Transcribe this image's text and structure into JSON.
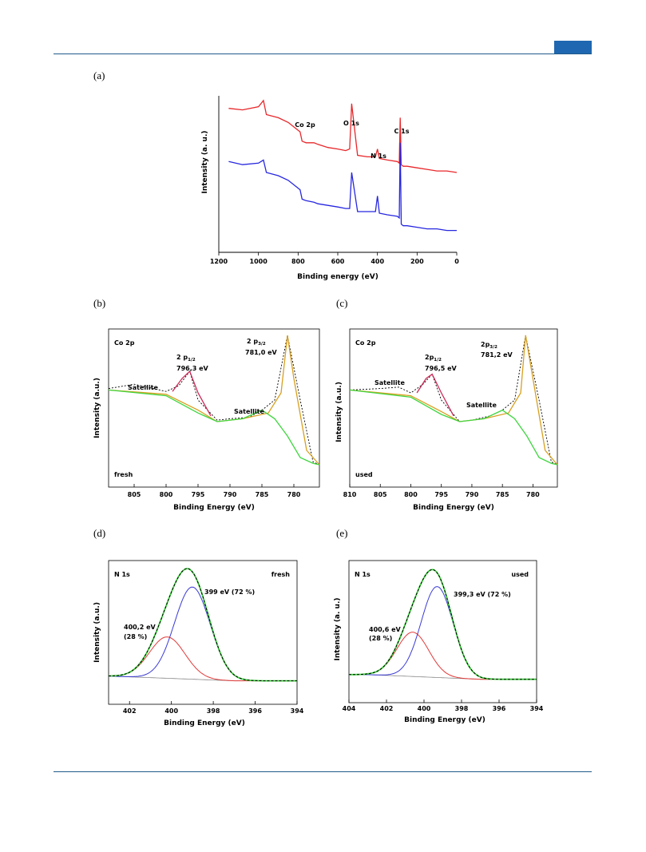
{
  "panels": {
    "a": "(a)",
    "b": "(b)",
    "c": "(c)",
    "d": "(d)",
    "e": "(e)"
  },
  "chart_data": [
    {
      "id": "a",
      "type": "line",
      "xlabel": "Binding energy (eV)",
      "ylabel": "Intensity (a. u.)",
      "xlim": [
        1200,
        0
      ],
      "xticks": [
        "1200",
        "1000",
        "800",
        "600",
        "400",
        "200",
        "0"
      ],
      "annotations": [
        "Co 2p",
        "O 1s",
        "N 1s",
        "C 1s"
      ],
      "series": [
        {
          "color": "#e8272a",
          "x": [
            1150,
            1080,
            1000,
            975,
            960,
            900,
            850,
            790,
            780,
            760,
            720,
            700,
            650,
            600,
            560,
            540,
            530,
            500,
            450,
            410,
            400,
            390,
            350,
            300,
            290,
            285,
            280,
            270,
            250,
            200,
            150,
            100,
            50,
            0
          ],
          "y": [
            0.92,
            0.91,
            0.93,
            0.97,
            0.88,
            0.86,
            0.83,
            0.77,
            0.71,
            0.7,
            0.7,
            0.69,
            0.67,
            0.66,
            0.65,
            0.66,
            0.95,
            0.62,
            0.61,
            0.61,
            0.66,
            0.6,
            0.59,
            0.58,
            0.57,
            0.86,
            0.56,
            0.55,
            0.55,
            0.54,
            0.53,
            0.52,
            0.52,
            0.51
          ]
        },
        {
          "color": "#2727e0",
          "x": [
            1150,
            1080,
            1000,
            975,
            960,
            900,
            850,
            790,
            780,
            760,
            720,
            700,
            650,
            600,
            560,
            540,
            530,
            500,
            450,
            410,
            400,
            390,
            350,
            300,
            290,
            285,
            280,
            270,
            250,
            200,
            150,
            100,
            50,
            0
          ],
          "y": [
            0.58,
            0.56,
            0.57,
            0.59,
            0.51,
            0.49,
            0.46,
            0.4,
            0.34,
            0.33,
            0.32,
            0.31,
            0.3,
            0.29,
            0.28,
            0.28,
            0.51,
            0.26,
            0.26,
            0.26,
            0.36,
            0.25,
            0.24,
            0.23,
            0.22,
            0.7,
            0.18,
            0.17,
            0.17,
            0.16,
            0.15,
            0.15,
            0.14,
            0.14
          ]
        }
      ]
    },
    {
      "id": "b",
      "type": "line",
      "xlabel": "Binding Energy (eV)",
      "ylabel": "Intensity (a.u.)",
      "xlim": [
        809,
        776
      ],
      "xticks": [
        "805",
        "800",
        "795",
        "790",
        "785",
        "780"
      ],
      "annotations": [
        "Co 2p",
        "2 p",
        "1/2",
        "796,3 eV",
        "2 p",
        "3/2",
        "781,0 eV",
        "Satellite",
        "Satellite",
        "fresh"
      ],
      "series": [
        {
          "color": "#000000",
          "x": [
            809,
            805,
            802,
            800,
            798,
            796.3,
            795,
            792,
            790,
            787,
            785,
            783,
            781,
            779,
            777,
            776
          ],
          "y": [
            0.63,
            0.66,
            0.63,
            0.61,
            0.65,
            0.75,
            0.55,
            0.41,
            0.42,
            0.43,
            0.48,
            0.55,
            1.0,
            0.55,
            0.12,
            0.1
          ]
        },
        {
          "color": "#d8a020",
          "x": [
            809,
            800,
            795,
            792,
            788,
            784,
            782,
            781,
            780,
            778,
            776
          ],
          "y": [
            0.62,
            0.59,
            0.48,
            0.4,
            0.42,
            0.46,
            0.6,
            1.0,
            0.7,
            0.2,
            0.1
          ]
        },
        {
          "color": "#3fd63f",
          "x": [
            809,
            800,
            795,
            792,
            788,
            785,
            783,
            781,
            779,
            777,
            776
          ],
          "y": [
            0.62,
            0.58,
            0.46,
            0.4,
            0.42,
            0.48,
            0.42,
            0.3,
            0.15,
            0.11,
            0.1
          ]
        },
        {
          "color": "#cc2b5a",
          "x": [
            799,
            797.5,
            796.3,
            795,
            793
          ],
          "y": [
            0.61,
            0.7,
            0.75,
            0.6,
            0.44
          ]
        }
      ]
    },
    {
      "id": "c",
      "type": "line",
      "xlabel": "Binding Energy (eV)",
      "ylabel": "Intensity (a.u.)",
      "xlim": [
        810,
        776
      ],
      "xticks": [
        "810",
        "805",
        "800",
        "795",
        "790",
        "785",
        "780"
      ],
      "annotations": [
        "Co 2p",
        "2p",
        "1/2",
        "796,5 eV",
        "2p",
        "3/2",
        "781,2 eV",
        "Satellite",
        "Satellite",
        "used"
      ],
      "series": [
        {
          "color": "#000000",
          "x": [
            810,
            805,
            802,
            800,
            798,
            796.5,
            795,
            792,
            790,
            787,
            785,
            783,
            781.2,
            779,
            777,
            776
          ],
          "y": [
            0.62,
            0.63,
            0.64,
            0.6,
            0.66,
            0.73,
            0.55,
            0.4,
            0.41,
            0.44,
            0.48,
            0.55,
            1.0,
            0.55,
            0.12,
            0.1
          ]
        },
        {
          "color": "#d8a020",
          "x": [
            810,
            800,
            795,
            792,
            788,
            784,
            782,
            781.2,
            780,
            778,
            776
          ],
          "y": [
            0.62,
            0.58,
            0.47,
            0.4,
            0.42,
            0.46,
            0.6,
            1.0,
            0.7,
            0.2,
            0.1
          ]
        },
        {
          "color": "#3fd63f",
          "x": [
            810,
            800,
            795,
            792,
            788,
            785,
            783,
            781,
            779,
            777,
            776
          ],
          "y": [
            0.62,
            0.57,
            0.45,
            0.4,
            0.42,
            0.48,
            0.42,
            0.3,
            0.15,
            0.11,
            0.1
          ]
        },
        {
          "color": "#cc2b5a",
          "x": [
            799,
            797.5,
            796.5,
            795,
            793
          ],
          "y": [
            0.6,
            0.7,
            0.73,
            0.6,
            0.44
          ]
        }
      ]
    },
    {
      "id": "d",
      "type": "line",
      "xlabel": "Binding Energy (eV)",
      "ylabel": "Intensity (a.u.)",
      "xlim": [
        403,
        394
      ],
      "xticks": [
        "402",
        "400",
        "398",
        "396",
        "394"
      ],
      "annotations": [
        "N 1s",
        "fresh",
        "399 eV (72 %)",
        "400,2 eV",
        "(28 %)"
      ],
      "peaks": [
        {
          "label": "400,2 eV (28 %)",
          "center": 400.2,
          "height": 0.35,
          "color": "#e23a3a"
        },
        {
          "label": "399 eV (72 %)",
          "center": 399,
          "height": 0.78,
          "color": "#3b3bd6"
        }
      ],
      "series": [
        {
          "name": "envelope",
          "color": "#3fd63f"
        },
        {
          "name": "background",
          "color": "#888888"
        }
      ]
    },
    {
      "id": "e",
      "type": "line",
      "xlabel": "Binding Energy (eV)",
      "ylabel": "Intensity (a. u.)",
      "xlim": [
        404,
        394
      ],
      "xticks": [
        "404",
        "402",
        "400",
        "398",
        "396",
        "394"
      ],
      "annotations": [
        "N 1s",
        "used",
        "399,3 eV (72 %)",
        "400,6 eV",
        "(28 %)"
      ],
      "peaks": [
        {
          "label": "400,6 eV (28 %)",
          "center": 400.6,
          "height": 0.38,
          "color": "#e23a3a"
        },
        {
          "label": "399,3 eV (72 %)",
          "center": 399.3,
          "height": 0.78,
          "color": "#3b3bd6"
        }
      ],
      "series": [
        {
          "name": "envelope",
          "color": "#3fd63f"
        },
        {
          "name": "background",
          "color": "#888888"
        }
      ]
    }
  ]
}
